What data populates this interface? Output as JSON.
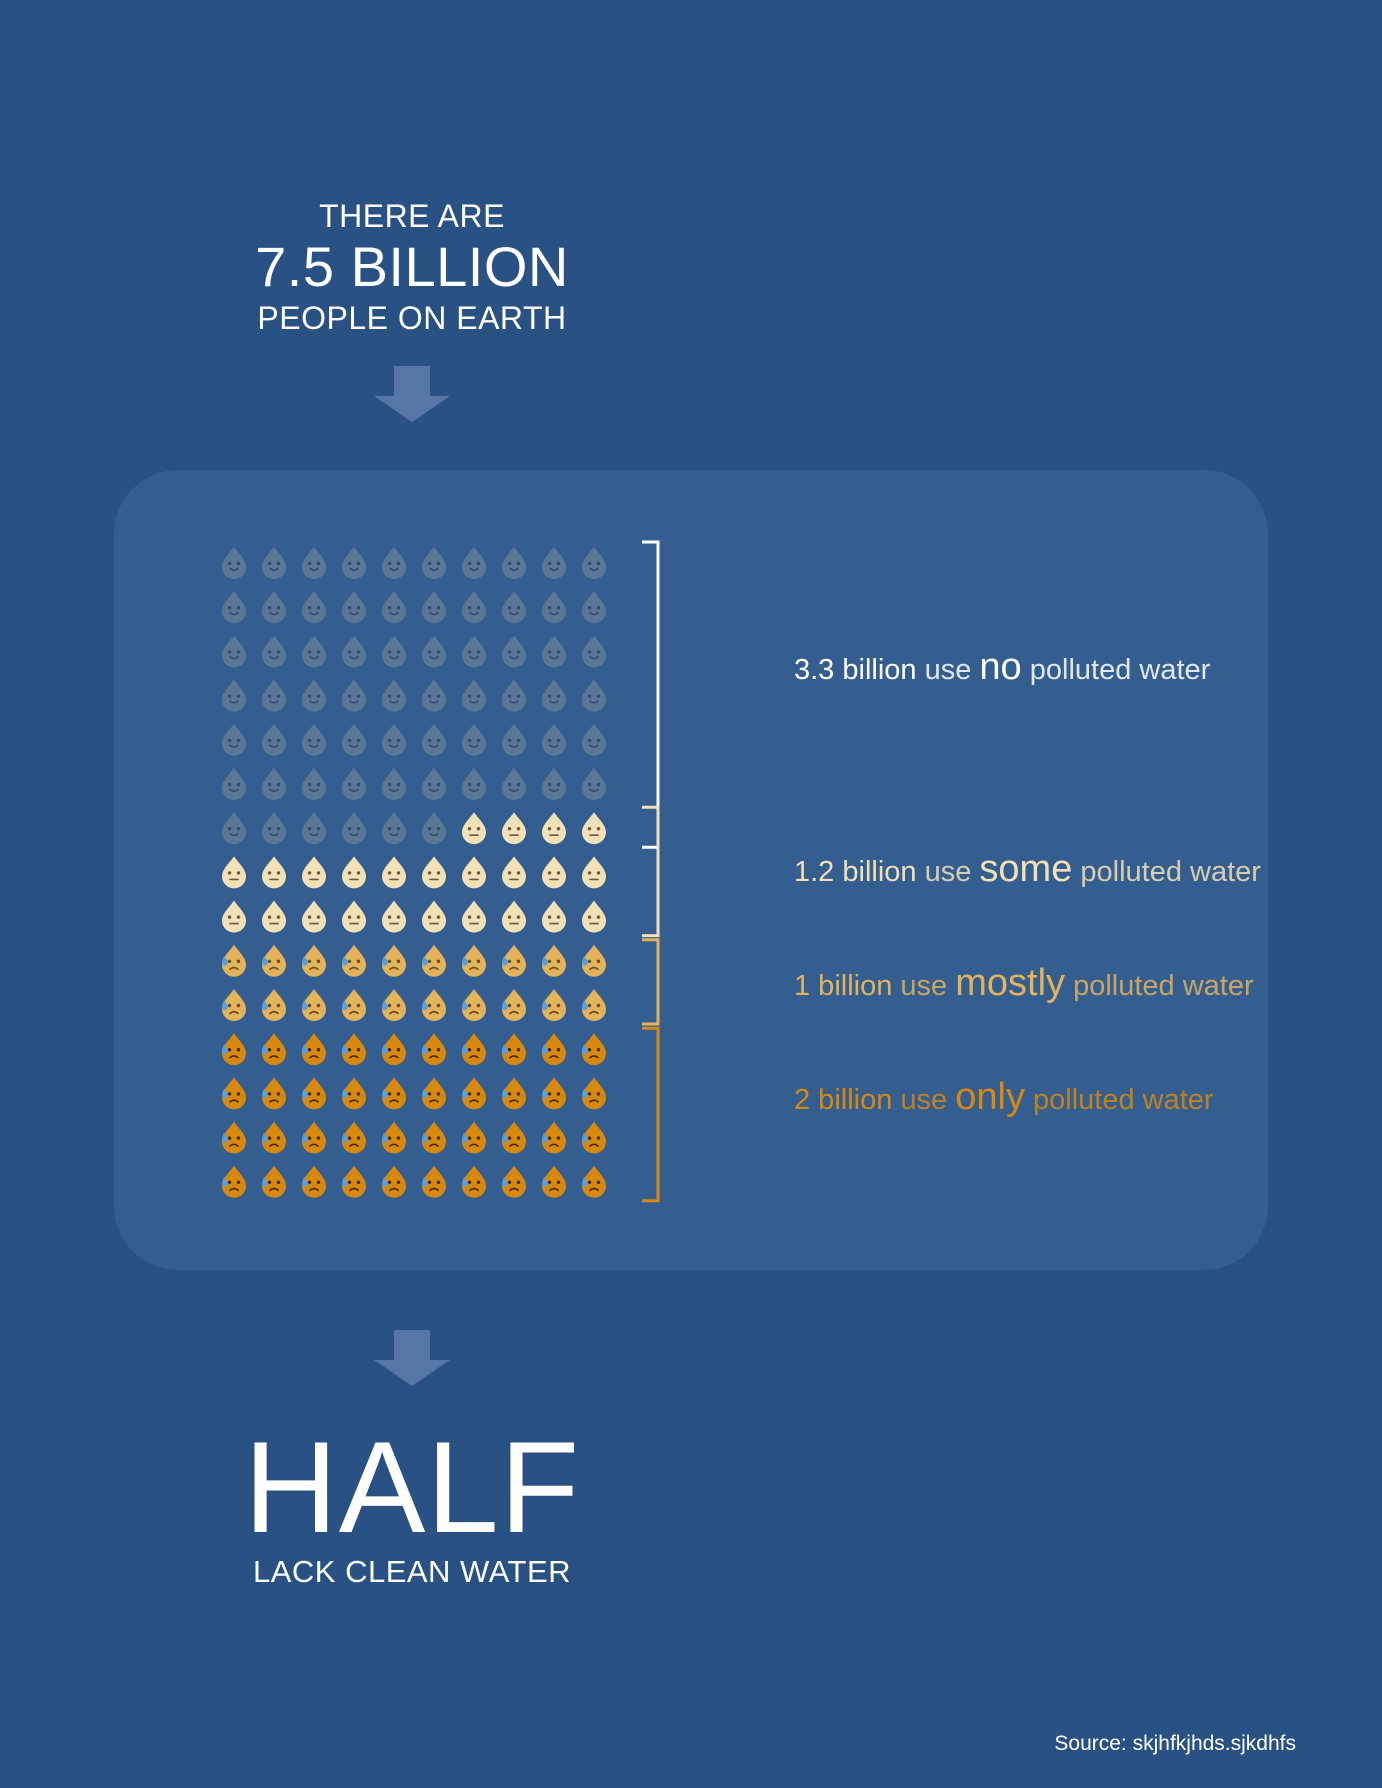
{
  "header": {
    "line1": "THERE ARE",
    "line2": "7.5 BILLION",
    "line3": "PEOPLE ON EARTH"
  },
  "footer": {
    "headline": "HALF",
    "subline": "LACK CLEAN WATER"
  },
  "source": "Source: skjhfkjhds.sjkdhfs",
  "colors": {
    "background": "#2a5184",
    "panel": "#345e90",
    "none": "#5a7896",
    "some": "#f2e1b6",
    "mostly": "#e2b35b",
    "only": "#d7880e",
    "tear": "#5b9fd6"
  },
  "chart_data": {
    "type": "pictograph",
    "grid": {
      "columns": 10,
      "rows": 16
    },
    "unit_icon": "water-drop-face-icon",
    "categories": [
      {
        "key": "none",
        "amount": "3.3 billion",
        "use": "use",
        "degree": "no",
        "rest": "polluted water",
        "icons": 66,
        "face": "smile",
        "color": "#5a7896"
      },
      {
        "key": "some",
        "amount": "1.2 billion",
        "use": "use",
        "degree": "some",
        "rest": "polluted water",
        "icons": 24,
        "face": "neutral",
        "color": "#f2e1b6"
      },
      {
        "key": "mostly",
        "amount": "1 billion",
        "use": "use",
        "degree": "mostly",
        "rest": "polluted water",
        "icons": 20,
        "face": "sad-tear",
        "color": "#e2b35b"
      },
      {
        "key": "only",
        "amount": "2 billion",
        "use": "use",
        "degree": "only",
        "rest": "polluted water",
        "icons": 40,
        "face": "upset-tear",
        "color": "#d7880e"
      }
    ]
  }
}
